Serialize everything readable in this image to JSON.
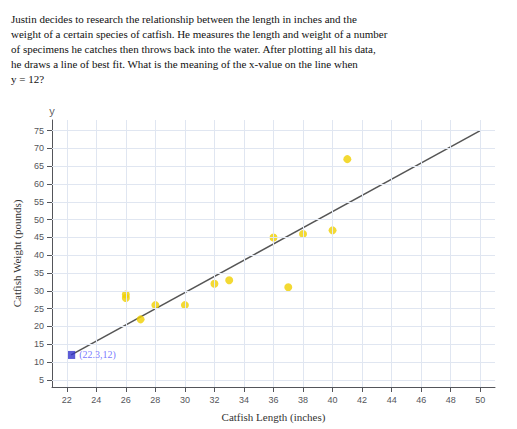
{
  "chart_data": {
    "type": "scatter",
    "title": "Justin decides to research the relationship between the length in inches and the\nweight of a certain species of catfish. He measures the length and weight of a number\nof specimens he catches then throws back into the water. After plotting all his data,\nhe draws a line of best fit. What is the meaning of the x-value on the line when\ny = 12?",
    "x_label": "Catfish Length (inches)",
    "y_label": "Catfish Weight (pounds)",
    "xlim": [
      21,
      51
    ],
    "ylim": [
      3,
      78
    ],
    "xticks": [
      22,
      24,
      26,
      28,
      30,
      32,
      34,
      36,
      38,
      40,
      42,
      44,
      46,
      48,
      50
    ],
    "yticks": [
      5,
      10,
      15,
      20,
      25,
      30,
      35,
      40,
      45,
      50,
      55,
      60,
      65,
      70,
      75
    ],
    "grid": true,
    "series": [
      {
        "type": "line",
        "color": "#555555",
        "x": [
          22.3,
          50
        ],
        "values": [
          12,
          75
        ]
      },
      {
        "type": "scatter",
        "marker": "circle",
        "color": "#f0d000",
        "x": [
          26,
          26,
          27,
          28,
          30,
          32,
          33,
          36,
          37,
          38,
          40,
          41
        ],
        "values": [
          29,
          28,
          22,
          26,
          26,
          32,
          33,
          45,
          31,
          46,
          47,
          67
        ]
      },
      {
        "type": "scatter",
        "marker": "square",
        "color": "#3333cc",
        "x": [
          22.3
        ],
        "values": [
          12
        ]
      }
    ],
    "annotations": [
      {
        "text": "(22.3,12)",
        "x": 22.3,
        "y": 12,
        "color": "#5555ff"
      },
      {
        "text": "y",
        "x": 21,
        "y": 78
      }
    ]
  }
}
